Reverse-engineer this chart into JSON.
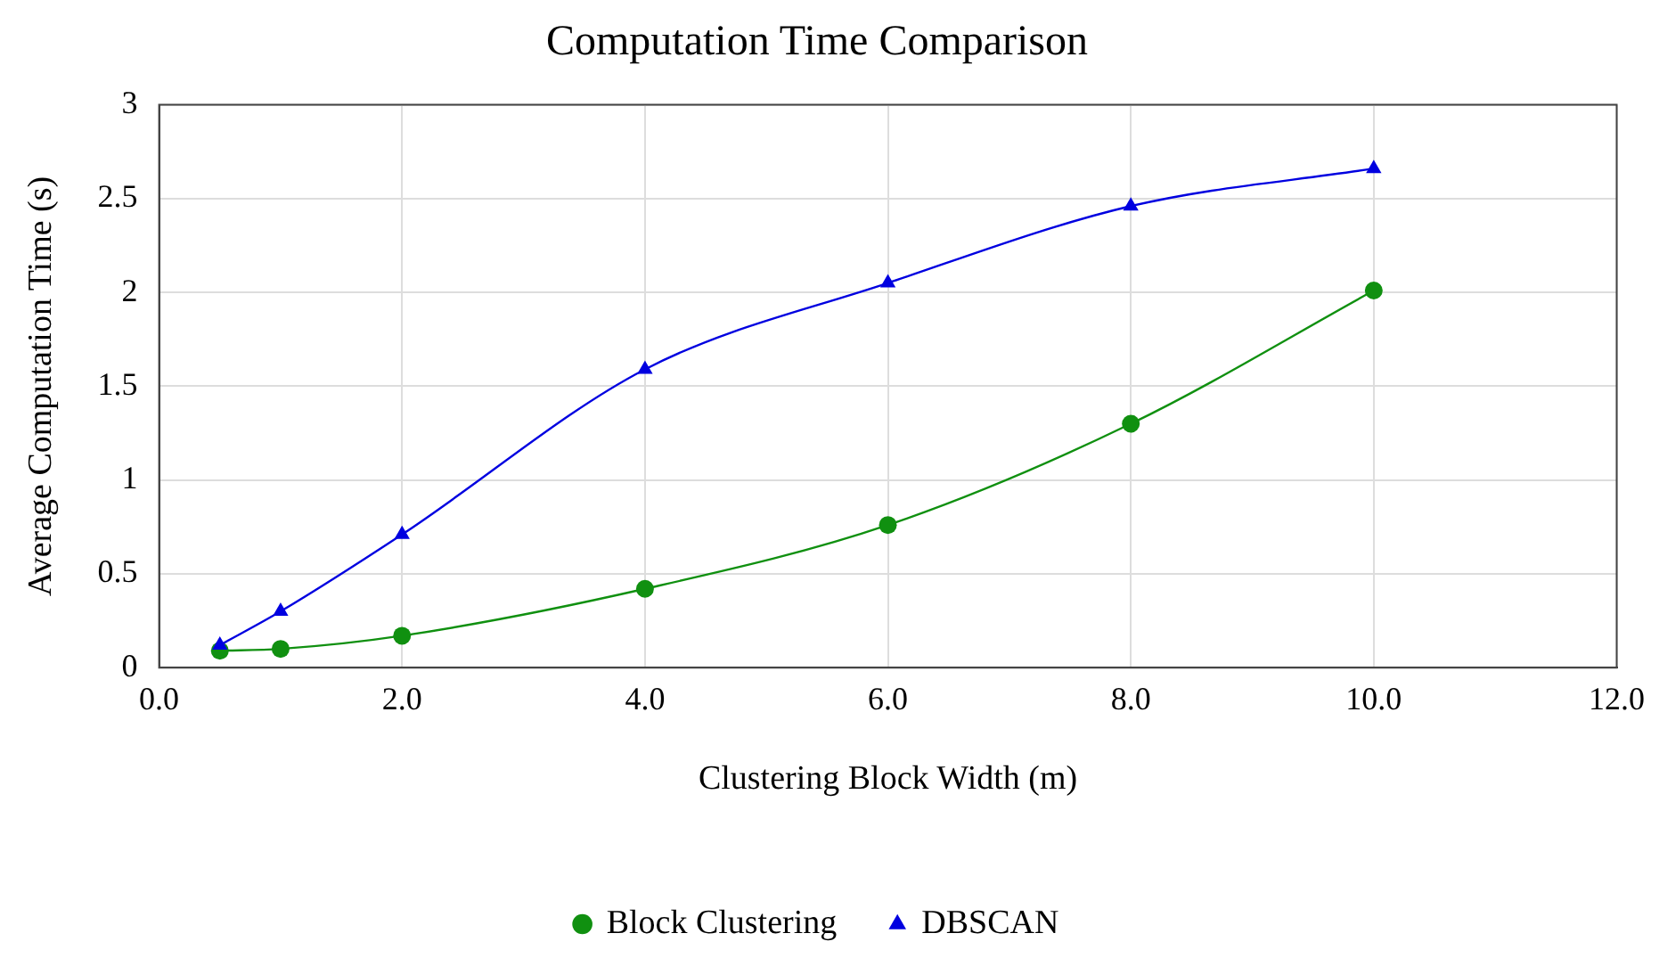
{
  "chart_data": {
    "type": "line",
    "title": "Computation Time Comparison",
    "xlabel": "Clustering Block Width (m)",
    "ylabel": "Average Computation Time (s)",
    "x": [
      0.5,
      1,
      2,
      4,
      6,
      8,
      10
    ],
    "series": [
      {
        "name": "Block Clustering",
        "color": "#109010",
        "marker": "circle",
        "values": [
          0.09,
          0.1,
          0.17,
          0.42,
          0.76,
          1.3,
          2.01
        ]
      },
      {
        "name": "DBSCAN",
        "color": "#0000e0",
        "marker": "triangle",
        "values": [
          0.12,
          0.3,
          0.71,
          1.59,
          2.05,
          2.46,
          2.66
        ]
      }
    ],
    "xlim": [
      0,
      12
    ],
    "xticks": [
      {
        "value": 0,
        "label": "0.0"
      },
      {
        "value": 2,
        "label": "2.0"
      },
      {
        "value": 4,
        "label": "4.0"
      },
      {
        "value": 6,
        "label": "6.0"
      },
      {
        "value": 8,
        "label": "8.0"
      },
      {
        "value": 10,
        "label": "10.0"
      },
      {
        "value": 12,
        "label": "12.0"
      }
    ],
    "ylim": [
      0,
      3
    ],
    "yticks": [
      0,
      0.5,
      1,
      1.5,
      2,
      2.5,
      3
    ],
    "grid": true,
    "legend": "bottom",
    "line_style": "solid"
  }
}
